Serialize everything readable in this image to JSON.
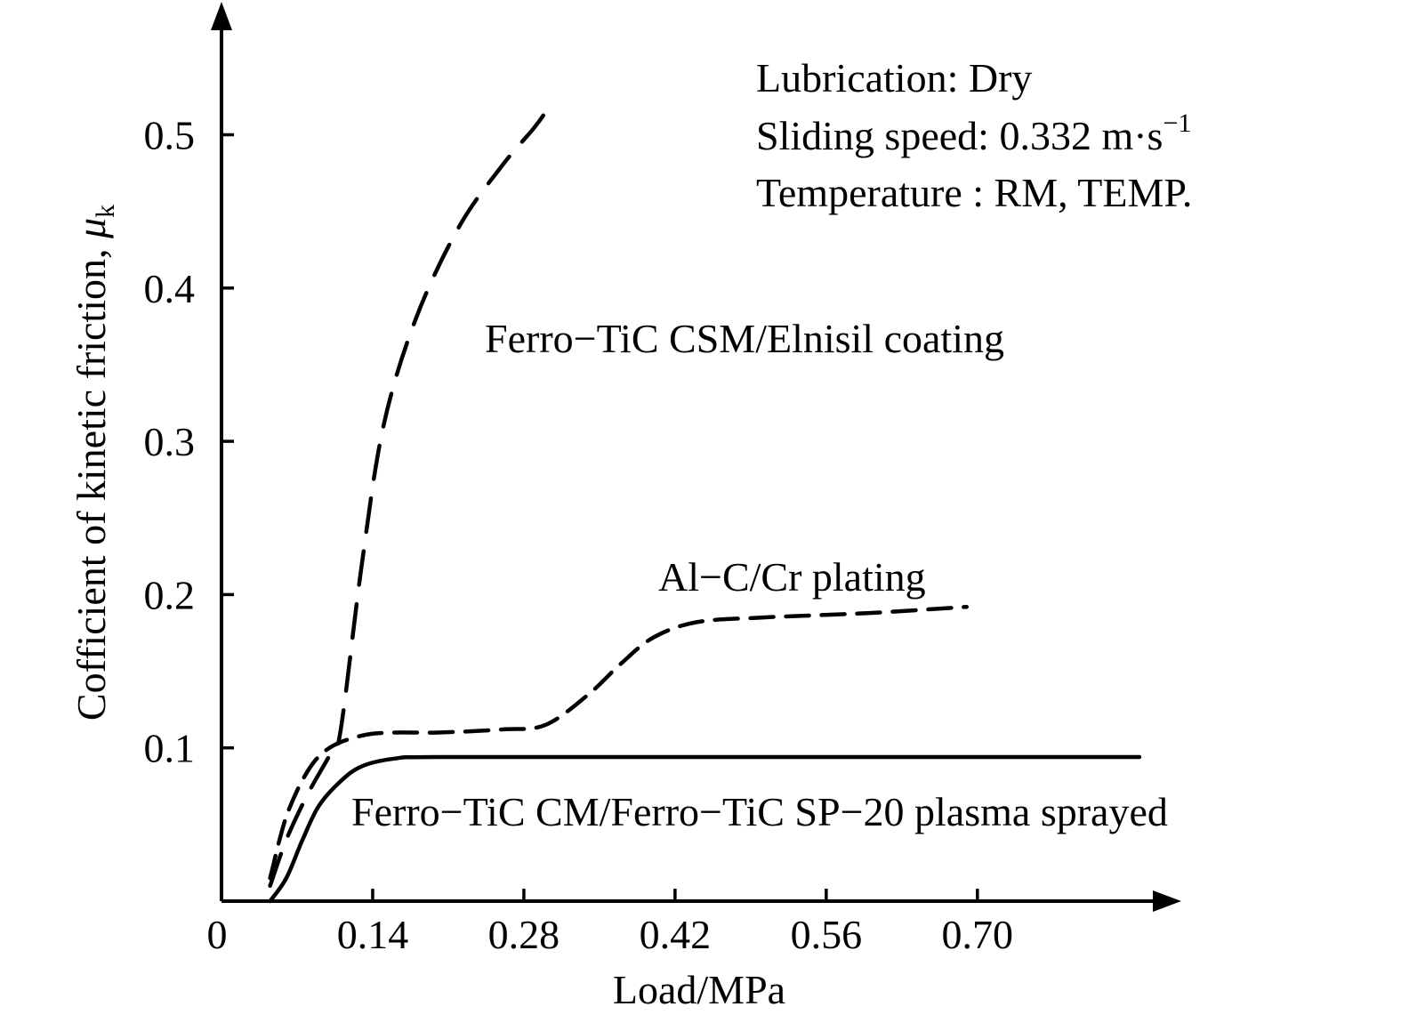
{
  "chart_data": {
    "type": "line",
    "xlabel": "Load/MPa",
    "ylabel": "Cofficient of kinetic friction, ",
    "ylabel_symbol": "μ",
    "ylabel_subscript": "k",
    "xlim": [
      0,
      0.85
    ],
    "ylim": [
      0,
      0.59
    ],
    "x_ticks": [
      0.14,
      0.28,
      0.42,
      0.56,
      0.7
    ],
    "x_tick_labels": [
      "0.14",
      "0.28",
      "0.42",
      "0.56",
      "0.70"
    ],
    "origin_label": "0",
    "y_ticks": [
      0.1,
      0.2,
      0.3,
      0.4,
      0.5
    ],
    "y_tick_labels": [
      "0.1",
      "0.2",
      "0.3",
      "0.4",
      "0.5"
    ],
    "grid": false,
    "legend": "none",
    "annotations": [
      "Lubrication: Dry",
      "Sliding speed: 0.332 m·s",
      "Temperature : RM, TEMP."
    ],
    "annotation_superscript": "−1",
    "series": [
      {
        "name": "Ferro−TiC CSM/Elnisil coating",
        "style": "long-dash",
        "x": [
          0.045,
          0.06,
          0.08,
          0.1,
          0.11,
          0.13,
          0.15,
          0.18,
          0.22,
          0.26,
          0.29,
          0.305
        ],
        "y": [
          0.01,
          0.04,
          0.07,
          0.095,
          0.11,
          0.22,
          0.31,
          0.38,
          0.44,
          0.48,
          0.505,
          0.52
        ]
      },
      {
        "name": "Al−C/Cr plating",
        "style": "dash",
        "x": [
          0.045,
          0.06,
          0.08,
          0.1,
          0.13,
          0.16,
          0.2,
          0.26,
          0.3,
          0.34,
          0.37,
          0.4,
          0.44,
          0.5,
          0.6,
          0.69
        ],
        "y": [
          0.015,
          0.055,
          0.085,
          0.1,
          0.108,
          0.11,
          0.11,
          0.112,
          0.115,
          0.135,
          0.155,
          0.172,
          0.182,
          0.185,
          0.188,
          0.192
        ]
      },
      {
        "name": "Ferro−TiC CM/Ferro−TiC SP−20 plasma sprayed",
        "style": "solid",
        "x": [
          0.045,
          0.06,
          0.075,
          0.09,
          0.11,
          0.13,
          0.16,
          0.2,
          0.4,
          0.6,
          0.85
        ],
        "y": [
          0.0,
          0.015,
          0.04,
          0.062,
          0.078,
          0.088,
          0.093,
          0.094,
          0.094,
          0.094,
          0.094
        ]
      }
    ]
  }
}
